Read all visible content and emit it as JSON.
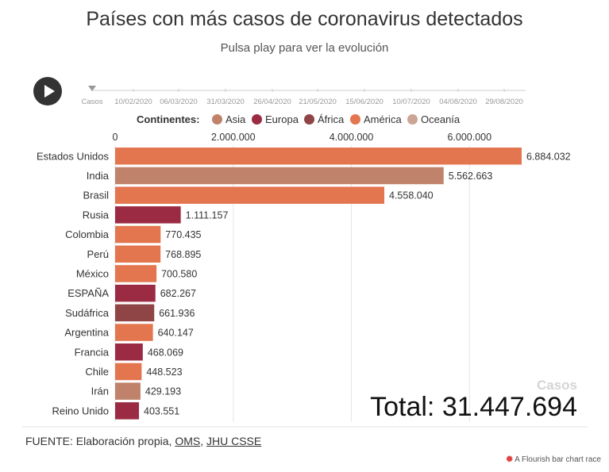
{
  "header": {
    "title": "Países con más casos de coronavirus detectados",
    "subtitle": "Pulsa play para ver la evolución"
  },
  "timeline": {
    "labels": [
      "Casos",
      "10/02/2020",
      "06/03/2020",
      "31/03/2020",
      "26/04/2020",
      "21/05/2020",
      "15/06/2020",
      "10/07/2020",
      "04/08/2020",
      "29/08/2020"
    ]
  },
  "legend": {
    "title": "Continentes:",
    "items": [
      {
        "label": "Asia",
        "color": "#c0826a"
      },
      {
        "label": "Europa",
        "color": "#9b2b43"
      },
      {
        "label": "África",
        "color": "#8f4545"
      },
      {
        "label": "América",
        "color": "#e3754f"
      },
      {
        "label": "Oceanía",
        "color": "#cba595"
      }
    ]
  },
  "chart_data": {
    "type": "bar",
    "orientation": "horizontal",
    "title": "Países con más casos de coronavirus detectados",
    "x_ticks": [
      "0",
      "2.000.000",
      "4.000.000",
      "6.000.000"
    ],
    "x_tick_values": [
      0,
      2000000,
      4000000,
      6000000
    ],
    "xlim": [
      0,
      7000000
    ],
    "grid": true,
    "legend_placement": "top",
    "bars": [
      {
        "label": "Estados Unidos",
        "value": 6884032,
        "value_label": "6.884.032",
        "continent": "América",
        "color": "#e3754f"
      },
      {
        "label": "India",
        "value": 5562663,
        "value_label": "5.562.663",
        "continent": "Asia",
        "color": "#c0826a"
      },
      {
        "label": "Brasil",
        "value": 4558040,
        "value_label": "4.558.040",
        "continent": "América",
        "color": "#e3754f"
      },
      {
        "label": "Rusia",
        "value": 1111157,
        "value_label": "1.111.157",
        "continent": "Europa",
        "color": "#9b2b43"
      },
      {
        "label": "Colombia",
        "value": 770435,
        "value_label": "770.435",
        "continent": "América",
        "color": "#e3754f"
      },
      {
        "label": "Perú",
        "value": 768895,
        "value_label": "768.895",
        "continent": "América",
        "color": "#e3754f"
      },
      {
        "label": "México",
        "value": 700580,
        "value_label": "700.580",
        "continent": "América",
        "color": "#e3754f"
      },
      {
        "label": "ESPAÑA",
        "value": 682267,
        "value_label": "682.267",
        "continent": "Europa",
        "color": "#9b2b43"
      },
      {
        "label": "Sudáfrica",
        "value": 661936,
        "value_label": "661.936",
        "continent": "África",
        "color": "#8f4545"
      },
      {
        "label": "Argentina",
        "value": 640147,
        "value_label": "640.147",
        "continent": "América",
        "color": "#e3754f"
      },
      {
        "label": "Francia",
        "value": 468069,
        "value_label": "468.069",
        "continent": "Europa",
        "color": "#9b2b43"
      },
      {
        "label": "Chile",
        "value": 448523,
        "value_label": "448.523",
        "continent": "América",
        "color": "#e3754f"
      },
      {
        "label": "Irán",
        "value": 429193,
        "value_label": "429.193",
        "continent": "Asia",
        "color": "#c0826a"
      },
      {
        "label": "Reino Unido",
        "value": 403551,
        "value_label": "403.551",
        "continent": "Europa",
        "color": "#9b2b43"
      }
    ],
    "counter_label": "Casos",
    "total_label": "Total: 31.447.694"
  },
  "footer": {
    "source_prefix": "FUENTE: Elaboración propia, ",
    "source_link1": "OMS",
    "source_sep": ", ",
    "source_link2": "JHU CSSE",
    "credit": "A Flourish bar chart race",
    "credit_icon": "flourish-logo-icon"
  }
}
